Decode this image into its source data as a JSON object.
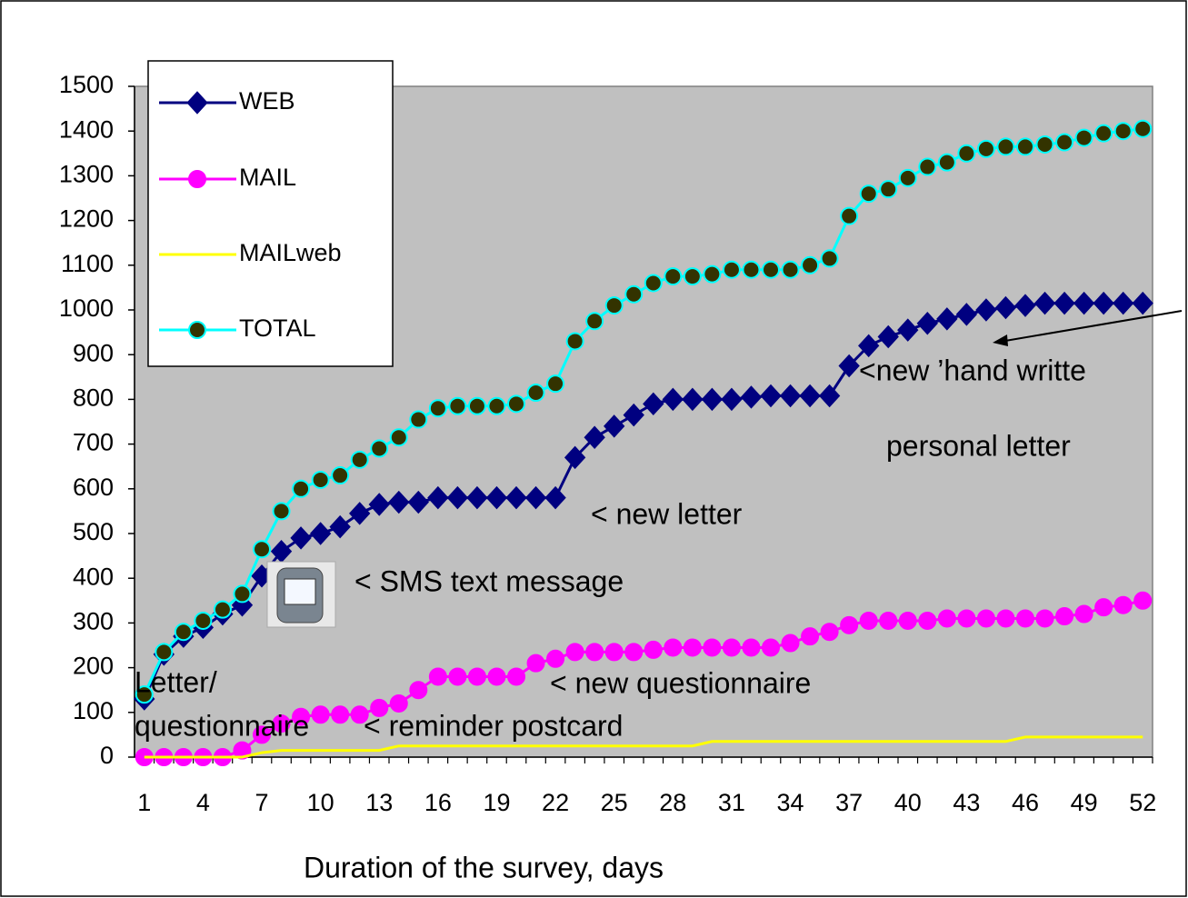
{
  "chart_data": {
    "type": "line",
    "categories": [
      1,
      null,
      null,
      4,
      null,
      null,
      7,
      null,
      null,
      10,
      null,
      null,
      13,
      null,
      null,
      16,
      null,
      null,
      19,
      null,
      null,
      22,
      null,
      null,
      25,
      null,
      null,
      28,
      null,
      null,
      31,
      null,
      null,
      34,
      null,
      null,
      37,
      null,
      null,
      40,
      null,
      null,
      43,
      null,
      null,
      46,
      null,
      null,
      49,
      null,
      null,
      52
    ],
    "x_label": "Duration of the survey, days",
    "ylim": [
      0,
      1500
    ],
    "yticks": [
      0,
      100,
      200,
      300,
      400,
      500,
      600,
      700,
      800,
      900,
      1000,
      1100,
      1200,
      1300,
      1400,
      1500
    ],
    "legend": "top-left",
    "plot_background": "#c0c0c0",
    "series": [
      {
        "name": "WEB",
        "color": "#000080",
        "marker": "diamond",
        "marker_color": "#000080",
        "values": [
          130,
          230,
          270,
          290,
          320,
          340,
          405,
          460,
          490,
          500,
          515,
          545,
          565,
          570,
          570,
          580,
          580,
          580,
          580,
          580,
          580,
          580,
          670,
          715,
          740,
          765,
          790,
          800,
          800,
          800,
          800,
          805,
          808,
          808,
          808,
          808,
          875,
          920,
          940,
          955,
          970,
          980,
          990,
          1000,
          1005,
          1010,
          1015,
          1015,
          1015,
          1015,
          1015,
          1015
        ]
      },
      {
        "name": "MAIL",
        "color": "#ff00ff",
        "marker": "circle",
        "marker_color": "#ff00ff",
        "values": [
          0,
          0,
          0,
          0,
          0,
          15,
          50,
          75,
          90,
          95,
          95,
          95,
          110,
          120,
          150,
          180,
          180,
          180,
          180,
          180,
          210,
          220,
          235,
          235,
          235,
          235,
          240,
          245,
          245,
          245,
          245,
          245,
          245,
          255,
          270,
          280,
          295,
          305,
          305,
          305,
          305,
          310,
          310,
          310,
          310,
          310,
          310,
          315,
          320,
          335,
          340,
          350
        ]
      },
      {
        "name": "MAILweb",
        "color": "#ffff00",
        "marker": "none",
        "marker_color": "#ffff00",
        "values": [
          0,
          0,
          0,
          0,
          0,
          0,
          10,
          15,
          15,
          15,
          15,
          15,
          15,
          25,
          25,
          25,
          25,
          25,
          25,
          25,
          25,
          25,
          25,
          25,
          25,
          25,
          25,
          25,
          25,
          35,
          35,
          35,
          35,
          35,
          35,
          35,
          35,
          35,
          35,
          35,
          35,
          35,
          35,
          35,
          35,
          45,
          45,
          45,
          45,
          45,
          45,
          45
        ]
      },
      {
        "name": "TOTAL",
        "color": "#00ffff",
        "marker": "circle",
        "marker_color": "#333300",
        "values": [
          140,
          235,
          280,
          305,
          330,
          365,
          465,
          550,
          600,
          620,
          630,
          665,
          690,
          715,
          755,
          780,
          785,
          785,
          785,
          790,
          815,
          835,
          930,
          975,
          1010,
          1035,
          1060,
          1075,
          1075,
          1080,
          1090,
          1090,
          1090,
          1090,
          1100,
          1115,
          1210,
          1260,
          1270,
          1295,
          1320,
          1330,
          1350,
          1360,
          1365,
          1365,
          1370,
          1375,
          1385,
          1395,
          1400,
          1405
        ]
      }
    ],
    "annotations": [
      "< new letter",
      "< SMS text message",
      "< new questionnaire",
      "Letter/",
      "questionnaire",
      "< reminder postcard",
      "<new ’hand writte",
      "personal letter"
    ]
  }
}
